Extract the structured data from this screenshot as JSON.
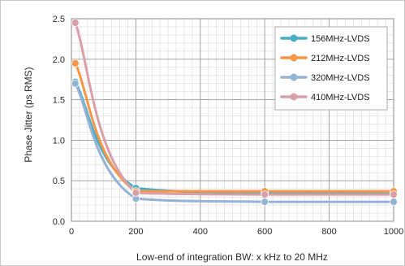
{
  "chart_data": {
    "type": "line",
    "title": "",
    "xlabel": "Low-end of integration BW: x kHz to 20 MHz",
    "ylabel": "Phase Jitter (ps RMS)",
    "xlim": [
      0,
      1000
    ],
    "ylim": [
      0,
      2.5
    ],
    "x_ticks": [
      "0",
      "200",
      "400",
      "600",
      "800",
      "1000"
    ],
    "y_ticks": [
      "0.0",
      "0.5",
      "1.0",
      "1.5",
      "2.0",
      "2.5"
    ],
    "grid": true,
    "legend_position": "top-right",
    "series": [
      {
        "name": "156MHz-LVDS",
        "color": "#4bacc6",
        "x": [
          12,
          200,
          600,
          1000
        ],
        "y": [
          1.72,
          0.41,
          0.35,
          0.34
        ]
      },
      {
        "name": "212MHz-LVDS",
        "color": "#f79646",
        "x": [
          12,
          200,
          600,
          1000
        ],
        "y": [
          1.95,
          0.37,
          0.37,
          0.37
        ]
      },
      {
        "name": "320MHz-LVDS",
        "color": "#95b3d7",
        "x": [
          12,
          200,
          600,
          1000
        ],
        "y": [
          1.7,
          0.28,
          0.24,
          0.24
        ]
      },
      {
        "name": "410MHz-LVDS",
        "color": "#d9a0a8",
        "x": [
          12,
          200,
          600,
          1000
        ],
        "y": [
          2.45,
          0.35,
          0.33,
          0.33
        ]
      }
    ]
  }
}
